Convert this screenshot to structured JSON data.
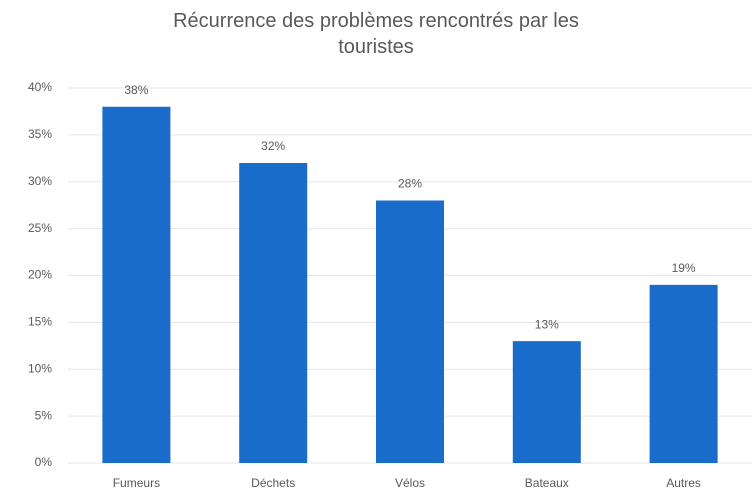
{
  "chart_data": {
    "type": "bar",
    "title": "Récurrence des problèmes rencontrés par les touristes",
    "categories": [
      "Fumeurs",
      "Déchets",
      "Vélos",
      "Bateaux",
      "Autres"
    ],
    "values": [
      38,
      32,
      28,
      13,
      19
    ],
    "value_labels": [
      "38%",
      "32%",
      "28%",
      "13%",
      "19%"
    ],
    "color": "#1a6ccb",
    "ylim": [
      0,
      40
    ],
    "yticks": [
      {
        "value": 0,
        "label": "0%"
      },
      {
        "value": 5,
        "label": "5%"
      },
      {
        "value": 10,
        "label": "10%"
      },
      {
        "value": 15,
        "label": "15%"
      },
      {
        "value": 20,
        "label": "20%"
      },
      {
        "value": 25,
        "label": "25%"
      },
      {
        "value": 30,
        "label": "30%"
      },
      {
        "value": 35,
        "label": "35%"
      },
      {
        "value": 40,
        "label": "40%"
      }
    ],
    "grid": true
  }
}
